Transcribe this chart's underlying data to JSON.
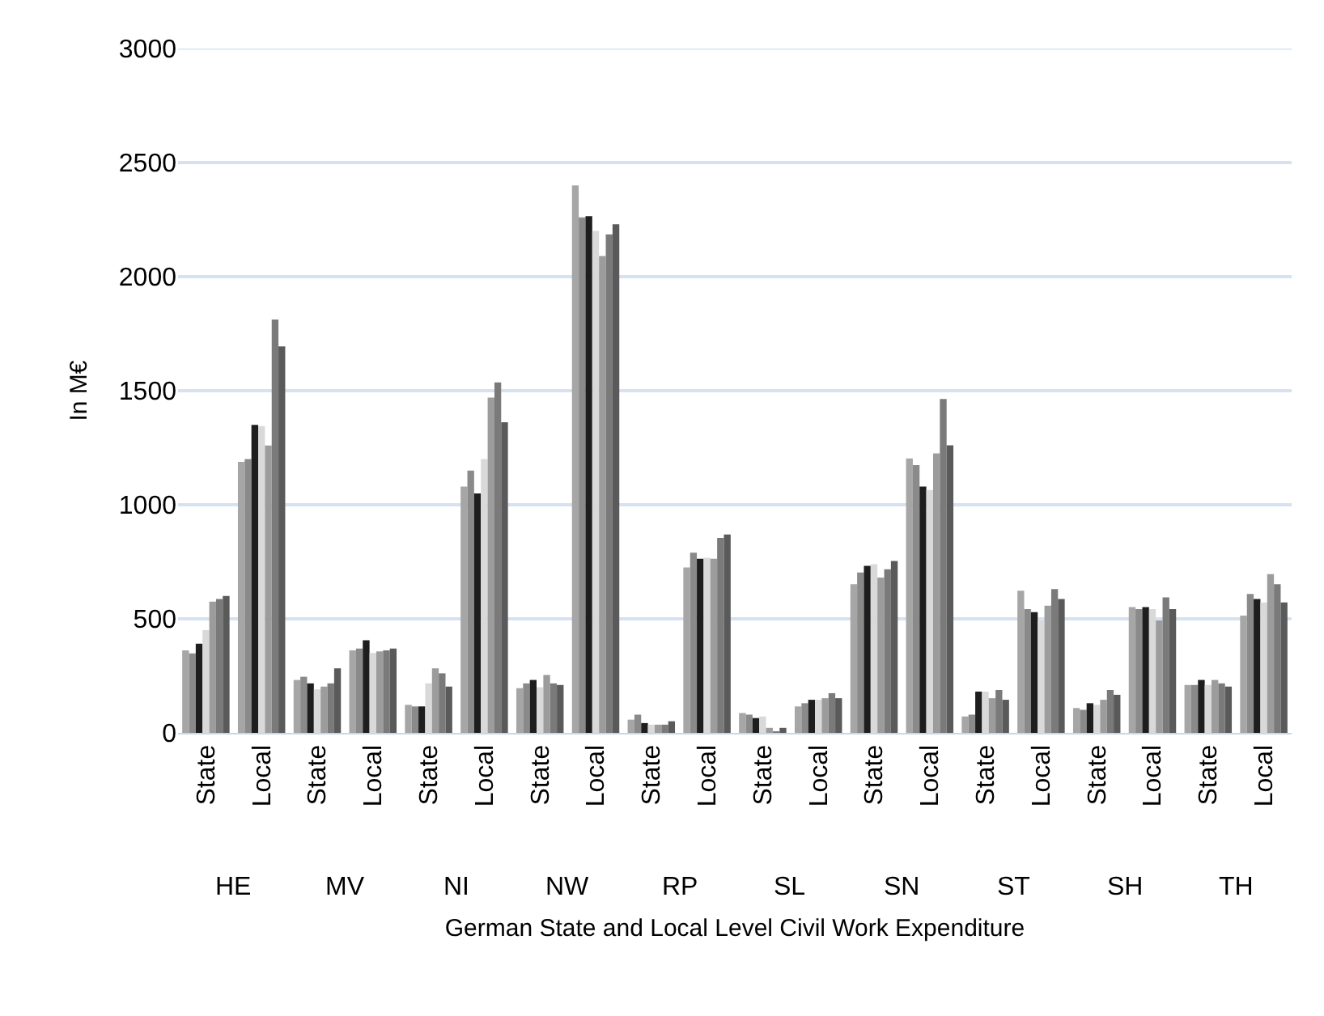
{
  "chart_data": {
    "type": "bar",
    "xlabel": "German State and Local Level Civil Work Expenditure",
    "ylabel": "In M€",
    "categories": [
      "State",
      "Local",
      "State",
      "Local",
      "State",
      "Local",
      "State",
      "Local",
      "State",
      "Local",
      "State",
      "Local",
      "State",
      "Local",
      "State",
      "Local",
      "State",
      "Local",
      "State",
      "Local"
    ],
    "annotations": [
      "HE",
      "MV",
      "NI",
      "NW",
      "RP",
      "SL",
      "SN",
      "ST",
      "SH",
      "TH"
    ],
    "series": [
      {
        "color": "#a6a6a6",
        "values": [
          362,
          1188,
          232,
          362,
          123,
          1080,
          196,
          2400,
          58,
          725,
          87,
          116,
          652,
          1203,
          72,
          623,
          109,
          551,
          210,
          514
        ]
      },
      {
        "color": "#8a8a8a",
        "values": [
          348,
          1200,
          246,
          370,
          116,
          1150,
          217,
          2260,
          80,
          790,
          80,
          130,
          703,
          1174,
          80,
          543,
          101,
          543,
          210,
          609
        ]
      },
      {
        "color": "#1e1e1e",
        "values": [
          391,
          1350,
          217,
          406,
          116,
          1050,
          232,
          2265,
          43,
          763,
          65,
          145,
          732,
          1080,
          181,
          529,
          130,
          551,
          232,
          587
        ]
      },
      {
        "color": "#d9d9d9",
        "values": [
          450,
          1345,
          191,
          350,
          217,
          1200,
          200,
          2200,
          36,
          768,
          72,
          145,
          739,
          1065,
          181,
          493,
          123,
          543,
          210,
          572
        ]
      },
      {
        "color": "#9c9c9c",
        "values": [
          575,
          1260,
          203,
          357,
          283,
          1470,
          254,
          2090,
          36,
          763,
          22,
          152,
          681,
          1225,
          152,
          558,
          145,
          493,
          232,
          696
        ]
      },
      {
        "color": "#7a7a7a",
        "values": [
          587,
          1812,
          217,
          362,
          261,
          1536,
          217,
          2185,
          36,
          855,
          7,
          174,
          717,
          1464,
          188,
          630,
          188,
          594,
          217,
          652
        ]
      },
      {
        "color": "#5a5a5a",
        "values": [
          600,
          1694,
          283,
          370,
          203,
          1362,
          210,
          2230,
          51,
          870,
          22,
          152,
          754,
          1261,
          145,
          587,
          167,
          543,
          203,
          572
        ]
      }
    ],
    "ylim": [
      0,
      3000
    ],
    "yticks": [
      0,
      500,
      1000,
      1500,
      2000,
      2500,
      3000
    ],
    "grid": "y"
  }
}
